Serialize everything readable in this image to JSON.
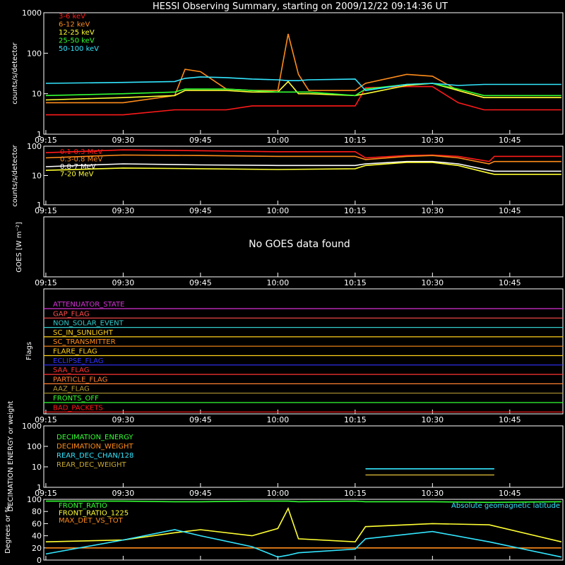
{
  "title": "HESSI Observing Summary, starting on 2009/12/22 09:14:36 UT",
  "time_ticks": [
    "09:15",
    "09:30",
    "09:45",
    "10:00",
    "10:15",
    "10:30",
    "10:45"
  ],
  "panels": {
    "lc1": {
      "ylabel": "counts/s/detector",
      "yticks": [
        "1",
        "10",
        "100",
        "1000"
      ],
      "legend": [
        {
          "name": "3-6 keV",
          "color": "#ff1a1a"
        },
        {
          "name": "6-12 keV",
          "color": "#ff8c1a"
        },
        {
          "name": "12-25 keV",
          "color": "#ffff33"
        },
        {
          "name": "25-50 keV",
          "color": "#33ff33"
        },
        {
          "name": "50-100 keV",
          "color": "#33e6ff"
        }
      ]
    },
    "lc2": {
      "ylabel": "counts/s/detector",
      "yticks": [
        "1",
        "10",
        "100"
      ],
      "legend": [
        {
          "name": "0.1-0.3 MeV",
          "color": "#ff1a1a"
        },
        {
          "name": "0.3-0.8 MeV",
          "color": "#ff8c1a"
        },
        {
          "name": "0.8-7 MeV",
          "color": "#ffffff"
        },
        {
          "name": "7-20 MeV",
          "color": "#ffff33"
        }
      ]
    },
    "goes": {
      "ylabel": "GOES [W m⁻²]",
      "message": "No GOES data found"
    },
    "flags": {
      "ylabel": "Flags",
      "items": [
        {
          "name": "ATTENUATOR_STATE",
          "color": "#d633d6"
        },
        {
          "name": "GAP_FLAG",
          "color": "#ff4d4d"
        },
        {
          "name": "NON_SOLAR_EVENT",
          "color": "#33cccc"
        },
        {
          "name": "SC_IN_SUNLIGHT",
          "color": "#ffd11a"
        },
        {
          "name": "SC_TRANSMITTER",
          "color": "#ff8c1a"
        },
        {
          "name": "FLARE_FLAG",
          "color": "#ffd11a"
        },
        {
          "name": "ECLIPSE_FLAG",
          "color": "#3333ff"
        },
        {
          "name": "SAA_FLAG",
          "color": "#ff3333"
        },
        {
          "name": "PARTICLE_FLAG",
          "color": "#ff7f33"
        },
        {
          "name": "AAZ_FLAG",
          "color": "#b39933"
        },
        {
          "name": "FRONTS_OFF",
          "color": "#33ff33"
        },
        {
          "name": "BAD_PACKETS",
          "color": "#ff1a1a"
        }
      ]
    },
    "dec": {
      "ylabel": "DECIMATION ENERGY or weight",
      "yticks": [
        "1",
        "10",
        "100",
        "1000"
      ],
      "legend": [
        {
          "name": "DECIMATION_ENERGY",
          "color": "#33ff33"
        },
        {
          "name": "DECIMATION_WEIGHT",
          "color": "#ff8c1a"
        },
        {
          "name": "REAR_DEC_CHAN/128",
          "color": "#33e6ff"
        },
        {
          "name": "REAR_DEC_WEIGHT",
          "color": "#c8a833"
        }
      ]
    },
    "misc": {
      "ylabel": "Degrees or %",
      "yticks": [
        "0",
        "20",
        "40",
        "60",
        "80",
        "100"
      ],
      "legend": [
        {
          "name": "FRONT_RATIO",
          "color": "#33ff33"
        },
        {
          "name": "FRONT_RATIO_1225",
          "color": "#ffff33"
        },
        {
          "name": "MAX_DET_VS_TOT",
          "color": "#ff8c1a"
        }
      ],
      "right_legend": {
        "name": "Absolute geomagnetic latitude",
        "color": "#33e6ff"
      }
    }
  },
  "chart_data": [
    {
      "type": "line",
      "panel": "lc1",
      "yscale": "log",
      "ylim": [
        1,
        1000
      ],
      "xlabel": "",
      "ylabel": "counts/s/detector",
      "x": [
        "09:15",
        "09:30",
        "09:40",
        "09:42",
        "09:45",
        "09:50",
        "09:55",
        "10:00",
        "10:02",
        "10:04",
        "10:06",
        "10:15",
        "10:17",
        "10:25",
        "10:30",
        "10:35",
        "10:40",
        "10:45",
        "10:55"
      ],
      "series": [
        {
          "name": "3-6 keV",
          "values": [
            3,
            3,
            4,
            4,
            4,
            4,
            5,
            5,
            5,
            5,
            5,
            5,
            14,
            15,
            15,
            6,
            4,
            4,
            4
          ]
        },
        {
          "name": "6-12 keV",
          "values": [
            6,
            6,
            9,
            40,
            35,
            13,
            12,
            12,
            300,
            30,
            12,
            12,
            18,
            30,
            27,
            12,
            8,
            8,
            8
          ]
        },
        {
          "name": "12-25 keV",
          "values": [
            7,
            8,
            9,
            12,
            12,
            12,
            11,
            11,
            20,
            10,
            10,
            9,
            10,
            16,
            18,
            12,
            8,
            8,
            8
          ]
        },
        {
          "name": "25-50 keV",
          "values": [
            9,
            10,
            11,
            13,
            13,
            13,
            12,
            11,
            11,
            11,
            11,
            9,
            13,
            17,
            18,
            13,
            9,
            9,
            9
          ]
        },
        {
          "name": "50-100 keV",
          "values": [
            18,
            19,
            20,
            24,
            26,
            25,
            23,
            22,
            21,
            21,
            22,
            23,
            12,
            17,
            18,
            16,
            17,
            17,
            17
          ]
        }
      ]
    },
    {
      "type": "line",
      "panel": "lc2",
      "yscale": "log",
      "ylim": [
        1,
        100
      ],
      "xlabel": "",
      "ylabel": "counts/s/detector",
      "x": [
        "09:15",
        "09:30",
        "09:45",
        "10:00",
        "10:15",
        "10:17",
        "10:25",
        "10:30",
        "10:35",
        "10:41",
        "10:42",
        "10:55"
      ],
      "series": [
        {
          "name": "0.1-0.3 MeV",
          "values": [
            60,
            75,
            70,
            65,
            65,
            40,
            48,
            50,
            45,
            30,
            45,
            45
          ]
        },
        {
          "name": "0.3-0.8 MeV",
          "values": [
            40,
            50,
            48,
            45,
            45,
            35,
            45,
            48,
            40,
            25,
            30,
            30
          ]
        },
        {
          "name": "0.8-7 MeV",
          "values": [
            20,
            25,
            23,
            22,
            22,
            25,
            30,
            30,
            25,
            15,
            14,
            14
          ]
        },
        {
          "name": "7-20 MeV",
          "values": [
            15,
            18,
            17,
            16,
            17,
            22,
            28,
            28,
            22,
            12,
            11,
            11
          ]
        }
      ]
    },
    {
      "type": "line",
      "panel": "dec",
      "yscale": "log",
      "ylim": [
        1,
        1000
      ],
      "xlabel": "",
      "ylabel": "DECIMATION ENERGY or weight",
      "x": [
        "09:15",
        "10:17",
        "10:17",
        "10:42",
        "10:42",
        "10:55"
      ],
      "series": [
        {
          "name": "REAR_DEC_CHAN/128",
          "values": [
            null,
            null,
            8,
            8,
            null,
            null
          ]
        },
        {
          "name": "REAR_DEC_WEIGHT",
          "values": [
            null,
            null,
            4,
            4,
            null,
            null
          ]
        }
      ]
    },
    {
      "type": "line",
      "panel": "misc",
      "ylim": [
        0,
        100
      ],
      "xlabel": "",
      "ylabel": "Degrees or %",
      "x": [
        "09:15",
        "09:30",
        "09:40",
        "09:45",
        "09:55",
        "10:00",
        "10:02",
        "10:04",
        "10:15",
        "10:17",
        "10:30",
        "10:41",
        "10:55"
      ],
      "series": [
        {
          "name": "FRONT_RATIO",
          "values": [
            97,
            97,
            96,
            96,
            97,
            97,
            97,
            96,
            97,
            96,
            96,
            95,
            96
          ]
        },
        {
          "name": "FRONT_RATIO_1225",
          "values": [
            30,
            33,
            45,
            50,
            40,
            52,
            85,
            35,
            30,
            55,
            60,
            58,
            30
          ]
        },
        {
          "name": "MAX_DET_VS_TOT",
          "values": [
            20,
            20,
            20,
            20,
            20,
            20,
            20,
            20,
            20,
            20,
            20,
            20,
            20
          ]
        },
        {
          "name": "Absolute geomagnetic latitude",
          "values": [
            10,
            33,
            50,
            40,
            22,
            5,
            8,
            12,
            18,
            35,
            47,
            30,
            5
          ]
        }
      ]
    }
  ]
}
